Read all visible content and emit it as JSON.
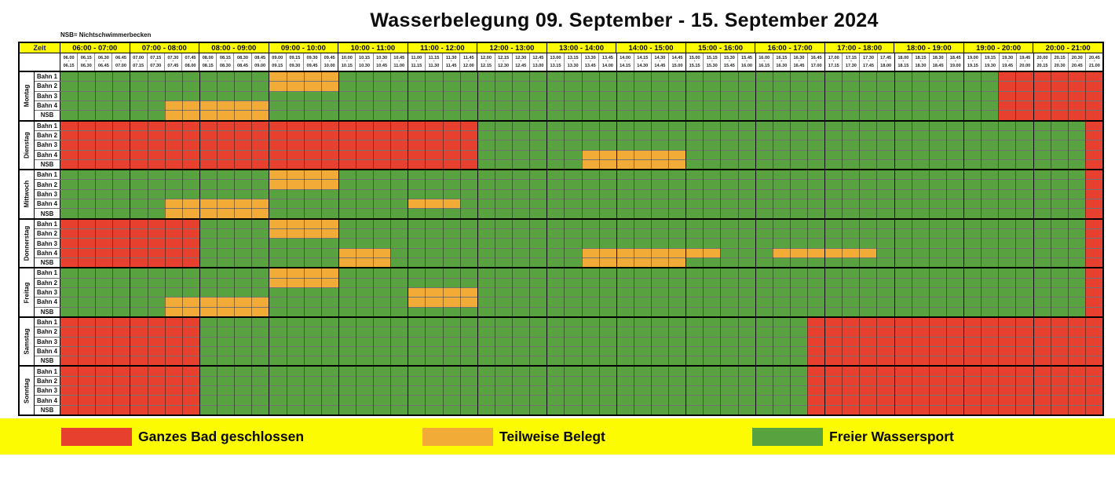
{
  "doc": {
    "title": "Wasserbelegung 09. September - 15. September 2024",
    "nsb_note": "NSB= Nichtschwimmerbecken"
  },
  "colors": {
    "geschlossen": "#e8402f",
    "teilweise": "#f3ab38",
    "frei": "#58a23f",
    "header_yellow": "#fdfb02",
    "legend_bar_yellow": "#fdfb02",
    "zeit_text": "#1a1a7e"
  },
  "schedule": {
    "header": {
      "zeit_label": "Zeit",
      "hours": [
        "06:00 - 07:00",
        "07:00 - 08:00",
        "08:00 - 09:00",
        "09:00 - 10:00",
        "10:00 - 11:00",
        "11:00 - 12:00",
        "12:00 - 13:00",
        "13:00 - 14:00",
        "14:00 - 15:00",
        "15:00 - 16:00",
        "16:00 - 17:00",
        "17:00 - 18:00",
        "18:00 - 19:00",
        "19:00 - 20:00",
        "20:00 - 21:00"
      ],
      "quarters": [
        "06.00-06.15",
        "06.15-06.30",
        "06.30-06.45",
        "06.45-07.00",
        "07.00-07.15",
        "07.15-07.30",
        "07.30-07.45",
        "07.45-08.00",
        "08.00-08.15",
        "08.15-08.30",
        "08.30-08.45",
        "08.45-09.00",
        "09.00-09.15",
        "09.15-09.30",
        "09.30-09.45",
        "09.45-10.00",
        "10.00-10.15",
        "10.15-10.30",
        "10.30-10.45",
        "10.45-11.00",
        "11.00-11.15",
        "11.15-11.30",
        "11.30-11.45",
        "11.45-12.00",
        "12.00-12.15",
        "12.15-12.30",
        "12.30-12.45",
        "12.45-13.00",
        "13.00-13.15",
        "13.15-13.30",
        "13.30-13.45",
        "13.45-14.00",
        "14.00-14.15",
        "14.15-14.30",
        "14.30-14.45",
        "14.45-15.00",
        "15.00-15.15",
        "15.15-15.30",
        "15.30-15.45",
        "15.45-16.00",
        "16.00-16.15",
        "16.15-16.30",
        "16.30-16.45",
        "16.45-17.00",
        "17.00-17.15",
        "17.15-17.30",
        "17.30-17.45",
        "17.45-18.00",
        "18.00-18.15",
        "18.15-18.30",
        "18.30-18.45",
        "18.45-19.00",
        "19.00-19.15",
        "19.15-19.30",
        "19.30-19.45",
        "19.45-20.00",
        "20.00-20.15",
        "20.15-20.30",
        "20.30-20.45",
        "20.45-21.00"
      ]
    },
    "time_start": "06:00",
    "time_end": "21:00",
    "statuses": {
      "frei": "Freier Wassersport",
      "teilweise": "Teilweise Belegt",
      "geschlossen": "Ganzes Bad geschlossen"
    },
    "days": [
      {
        "label": "Montag",
        "lanes": [
          {
            "label": "Bahn 1",
            "segments": [
              [
                "09:00",
                "10:00",
                "teilweise"
              ],
              [
                "19:30",
                "21:00",
                "geschlossen"
              ]
            ]
          },
          {
            "label": "Bahn 2",
            "segments": [
              [
                "09:00",
                "10:00",
                "teilweise"
              ],
              [
                "19:30",
                "21:00",
                "geschlossen"
              ]
            ]
          },
          {
            "label": "Bahn 3",
            "segments": [
              [
                "19:30",
                "21:00",
                "geschlossen"
              ]
            ]
          },
          {
            "label": "Bahn 4",
            "segments": [
              [
                "07:30",
                "09:00",
                "teilweise"
              ],
              [
                "19:30",
                "21:00",
                "geschlossen"
              ]
            ]
          },
          {
            "label": "NSB",
            "segments": [
              [
                "07:30",
                "09:00",
                "teilweise"
              ],
              [
                "19:30",
                "21:00",
                "geschlossen"
              ]
            ]
          }
        ]
      },
      {
        "label": "Dienstag",
        "lanes": [
          {
            "label": "Bahn 1",
            "segments": [
              [
                "06:00",
                "12:00",
                "geschlossen"
              ],
              [
                "20:45",
                "21:00",
                "geschlossen"
              ]
            ]
          },
          {
            "label": "Bahn 2",
            "segments": [
              [
                "06:00",
                "12:00",
                "geschlossen"
              ],
              [
                "20:45",
                "21:00",
                "geschlossen"
              ]
            ]
          },
          {
            "label": "Bahn 3",
            "segments": [
              [
                "06:00",
                "12:00",
                "geschlossen"
              ],
              [
                "20:45",
                "21:00",
                "geschlossen"
              ]
            ]
          },
          {
            "label": "Bahn 4",
            "segments": [
              [
                "06:00",
                "12:00",
                "geschlossen"
              ],
              [
                "13:30",
                "15:00",
                "teilweise"
              ],
              [
                "20:45",
                "21:00",
                "geschlossen"
              ]
            ]
          },
          {
            "label": "NSB",
            "segments": [
              [
                "06:00",
                "12:00",
                "geschlossen"
              ],
              [
                "13:30",
                "15:00",
                "teilweise"
              ],
              [
                "20:45",
                "21:00",
                "geschlossen"
              ]
            ]
          }
        ]
      },
      {
        "label": "Mittwoch",
        "lanes": [
          {
            "label": "Bahn 1",
            "segments": [
              [
                "09:00",
                "10:00",
                "teilweise"
              ],
              [
                "20:45",
                "21:00",
                "geschlossen"
              ]
            ]
          },
          {
            "label": "Bahn 2",
            "segments": [
              [
                "09:00",
                "10:00",
                "teilweise"
              ],
              [
                "20:45",
                "21:00",
                "geschlossen"
              ]
            ]
          },
          {
            "label": "Bahn 3",
            "segments": [
              [
                "20:45",
                "21:00",
                "geschlossen"
              ]
            ]
          },
          {
            "label": "Bahn 4",
            "segments": [
              [
                "07:30",
                "09:00",
                "teilweise"
              ],
              [
                "11:00",
                "11:45",
                "teilweise"
              ],
              [
                "20:45",
                "21:00",
                "geschlossen"
              ]
            ]
          },
          {
            "label": "NSB",
            "segments": [
              [
                "07:30",
                "09:00",
                "teilweise"
              ],
              [
                "20:45",
                "21:00",
                "geschlossen"
              ]
            ]
          }
        ]
      },
      {
        "label": "Donnerstag",
        "lanes": [
          {
            "label": "Bahn 1",
            "segments": [
              [
                "06:00",
                "08:00",
                "geschlossen"
              ],
              [
                "09:00",
                "10:00",
                "teilweise"
              ],
              [
                "20:45",
                "21:00",
                "geschlossen"
              ]
            ]
          },
          {
            "label": "Bahn 2",
            "segments": [
              [
                "06:00",
                "08:00",
                "geschlossen"
              ],
              [
                "09:00",
                "10:00",
                "teilweise"
              ],
              [
                "20:45",
                "21:00",
                "geschlossen"
              ]
            ]
          },
          {
            "label": "Bahn 3",
            "segments": [
              [
                "06:00",
                "08:00",
                "geschlossen"
              ],
              [
                "20:45",
                "21:00",
                "geschlossen"
              ]
            ]
          },
          {
            "label": "Bahn 4",
            "segments": [
              [
                "06:00",
                "08:00",
                "geschlossen"
              ],
              [
                "10:00",
                "10:45",
                "teilweise"
              ],
              [
                "13:30",
                "15:30",
                "teilweise"
              ],
              [
                "16:15",
                "17:45",
                "teilweise"
              ],
              [
                "20:45",
                "21:00",
                "geschlossen"
              ]
            ]
          },
          {
            "label": "NSB",
            "segments": [
              [
                "06:00",
                "08:00",
                "geschlossen"
              ],
              [
                "10:00",
                "10:45",
                "teilweise"
              ],
              [
                "13:30",
                "15:00",
                "teilweise"
              ],
              [
                "20:45",
                "21:00",
                "geschlossen"
              ]
            ]
          }
        ]
      },
      {
        "label": "Freitag",
        "lanes": [
          {
            "label": "Bahn 1",
            "segments": [
              [
                "09:00",
                "10:00",
                "teilweise"
              ],
              [
                "20:45",
                "21:00",
                "geschlossen"
              ]
            ]
          },
          {
            "label": "Bahn 2",
            "segments": [
              [
                "09:00",
                "10:00",
                "teilweise"
              ],
              [
                "20:45",
                "21:00",
                "geschlossen"
              ]
            ]
          },
          {
            "label": "Bahn 3",
            "segments": [
              [
                "11:00",
                "12:00",
                "teilweise"
              ],
              [
                "20:45",
                "21:00",
                "geschlossen"
              ]
            ]
          },
          {
            "label": "Bahn 4",
            "segments": [
              [
                "07:30",
                "09:00",
                "teilweise"
              ],
              [
                "11:00",
                "12:00",
                "teilweise"
              ],
              [
                "20:45",
                "21:00",
                "geschlossen"
              ]
            ]
          },
          {
            "label": "NSB",
            "segments": [
              [
                "07:30",
                "09:00",
                "teilweise"
              ],
              [
                "20:45",
                "21:00",
                "geschlossen"
              ]
            ]
          }
        ]
      },
      {
        "label": "Samstag",
        "lanes": [
          {
            "label": "Bahn 1",
            "segments": [
              [
                "06:00",
                "08:00",
                "geschlossen"
              ],
              [
                "16:45",
                "21:00",
                "geschlossen"
              ]
            ]
          },
          {
            "label": "Bahn 2",
            "segments": [
              [
                "06:00",
                "08:00",
                "geschlossen"
              ],
              [
                "16:45",
                "21:00",
                "geschlossen"
              ]
            ]
          },
          {
            "label": "Bahn 3",
            "segments": [
              [
                "06:00",
                "08:00",
                "geschlossen"
              ],
              [
                "16:45",
                "21:00",
                "geschlossen"
              ]
            ]
          },
          {
            "label": "Bahn 4",
            "segments": [
              [
                "06:00",
                "08:00",
                "geschlossen"
              ],
              [
                "16:45",
                "21:00",
                "geschlossen"
              ]
            ]
          },
          {
            "label": "NSB",
            "segments": [
              [
                "06:00",
                "08:00",
                "geschlossen"
              ],
              [
                "16:45",
                "21:00",
                "geschlossen"
              ]
            ]
          }
        ]
      },
      {
        "label": "Sonntag",
        "lanes": [
          {
            "label": "Bahn 1",
            "segments": [
              [
                "06:00",
                "08:00",
                "geschlossen"
              ],
              [
                "16:45",
                "21:00",
                "geschlossen"
              ]
            ]
          },
          {
            "label": "Bahn 2",
            "segments": [
              [
                "06:00",
                "08:00",
                "geschlossen"
              ],
              [
                "16:45",
                "21:00",
                "geschlossen"
              ]
            ]
          },
          {
            "label": "Bahn 3",
            "segments": [
              [
                "06:00",
                "08:00",
                "geschlossen"
              ],
              [
                "16:45",
                "21:00",
                "geschlossen"
              ]
            ]
          },
          {
            "label": "Bahn 4",
            "segments": [
              [
                "06:00",
                "08:00",
                "geschlossen"
              ],
              [
                "16:45",
                "21:00",
                "geschlossen"
              ]
            ]
          },
          {
            "label": "NSB",
            "segments": [
              [
                "06:00",
                "08:00",
                "geschlossen"
              ],
              [
                "16:45",
                "21:00",
                "geschlossen"
              ]
            ]
          }
        ]
      }
    ]
  },
  "legend": {
    "items": [
      {
        "status": "geschlossen",
        "label": "Ganzes Bad geschlossen"
      },
      {
        "status": "teilweise",
        "label": "Teilweise Belegt"
      },
      {
        "status": "frei",
        "label": "Freier Wassersport"
      }
    ]
  }
}
